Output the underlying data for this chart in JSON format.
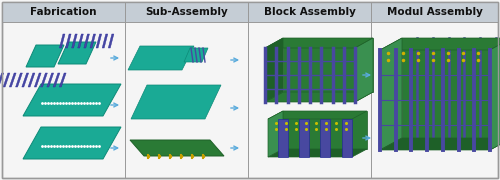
{
  "stages": [
    "Fabrication",
    "Sub-Assembly",
    "Block Assembly",
    "Modul Assembly"
  ],
  "bg_color": "#f5f5f5",
  "header_bg": "#c5cdd5",
  "border_color": "#999999",
  "teal": "#1aaa95",
  "teal_dark": "#0d8a78",
  "dark_green": "#2a7a35",
  "dark_green2": "#1e6028",
  "blue_purple": "#4848a0",
  "blue_stiff": "#3838a0",
  "arrow_color": "#5aabdc",
  "header_fontsize": 7.5,
  "dot_color": "#ffffff"
}
